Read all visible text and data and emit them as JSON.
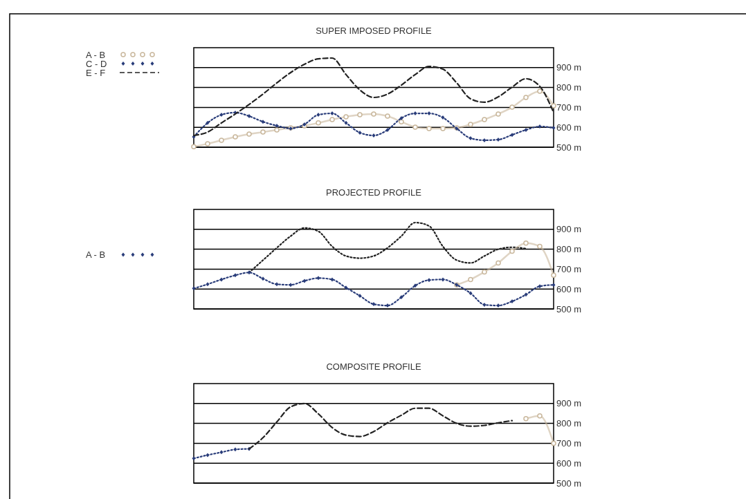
{
  "chart_data": [
    {
      "type": "line",
      "title": "SUPER IMPOSED PROFILE",
      "categories": [
        null,
        null,
        null,
        null,
        null,
        null,
        null,
        null,
        null,
        null,
        null,
        null,
        null,
        null,
        null,
        null,
        null,
        null,
        null,
        null,
        null,
        null,
        null,
        null,
        null,
        null,
        null
      ],
      "ylim": [
        500,
        1000
      ],
      "yticks": [
        {
          "value": 500,
          "label": "500 m"
        },
        {
          "value": 600,
          "label": "600 m"
        },
        {
          "value": 700,
          "label": "700 m"
        },
        {
          "value": 800,
          "label": "800 m"
        },
        {
          "value": 900,
          "label": "900 m"
        }
      ],
      "grid": "y",
      "legend": "top left",
      "tick_labels": "y",
      "series": [
        {
          "name": "A - B",
          "color": "#c9b79c",
          "marker": "circle",
          "line_style": "solid",
          "values": [
            503,
            517,
            535,
            552,
            566,
            576,
            587,
            597,
            608,
            622,
            639,
            653,
            663,
            667,
            656,
            628,
            601,
            594,
            594,
            597,
            615,
            639,
            667,
            701,
            750,
            781,
            708
          ]
        },
        {
          "name": "C - D",
          "color": "#2a3d7a",
          "marker": "diamond",
          "line_style": "dotted",
          "values": [
            552,
            622,
            663,
            674,
            656,
            628,
            608,
            594,
            615,
            663,
            670,
            622,
            573,
            559,
            587,
            646,
            670,
            670,
            649,
            594,
            545,
            535,
            538,
            562,
            587,
            604,
            597
          ]
        },
        {
          "name": "E - F",
          "color": "#222222",
          "marker": "none",
          "line_style": "dashed",
          "values": [
            559,
            576,
            622,
            667,
            715,
            767,
            823,
            875,
            917,
            944,
            948,
            865,
            788,
            750,
            767,
            812,
            865,
            906,
            892,
            823,
            743,
            726,
            753,
            802,
            844,
            806,
            674
          ]
        }
      ]
    },
    {
      "type": "line",
      "title": "PROJECTED PROFILE",
      "categories": [
        null,
        null,
        null,
        null,
        null,
        null,
        null,
        null,
        null,
        null,
        null,
        null,
        null,
        null,
        null,
        null,
        null,
        null,
        null,
        null,
        null,
        null,
        null,
        null,
        null,
        null,
        null
      ],
      "ylim": [
        500,
        1000
      ],
      "yticks": [
        {
          "value": 500,
          "label": "500 m"
        },
        {
          "value": 600,
          "label": "600 m"
        },
        {
          "value": 700,
          "label": "700 m"
        },
        {
          "value": 800,
          "label": "800 m"
        },
        {
          "value": 900,
          "label": "900 m"
        }
      ],
      "grid": "y",
      "legend": "left",
      "tick_labels": "y",
      "series": [
        {
          "color": "#222222",
          "marker": "none",
          "line_style": "dotted",
          "values": [
            null,
            null,
            null,
            null,
            683,
            745,
            807,
            866,
            907,
            890,
            814,
            766,
            755,
            766,
            807,
            866,
            934,
            917,
            814,
            745,
            731,
            766,
            800,
            810,
            803,
            null,
            null
          ]
        },
        {
          "color": "#c9b79c",
          "marker": "circle",
          "line_style": "solid",
          "values": [
            null,
            null,
            null,
            null,
            null,
            null,
            null,
            null,
            null,
            null,
            null,
            null,
            null,
            null,
            null,
            null,
            null,
            null,
            null,
            621,
            648,
            686,
            731,
            790,
            831,
            814,
            669
          ]
        },
        {
          "name": "A - B",
          "color": "#2a3d7a",
          "marker": "diamond",
          "line_style": "dotted",
          "values": [
            603,
            624,
            648,
            669,
            683,
            652,
            624,
            621,
            641,
            655,
            648,
            607,
            566,
            524,
            517,
            559,
            617,
            645,
            648,
            621,
            579,
            521,
            517,
            538,
            572,
            614,
            621
          ]
        }
      ]
    },
    {
      "type": "line",
      "title": "COMPOSITE PROFILE",
      "categories": [
        null,
        null,
        null,
        null,
        null,
        null,
        null,
        null,
        null,
        null,
        null,
        null,
        null,
        null,
        null,
        null,
        null,
        null,
        null,
        null,
        null,
        null,
        null,
        null,
        null,
        null,
        null
      ],
      "ylim": [
        500,
        1000
      ],
      "yticks": [
        {
          "value": 500,
          "label": "500 m"
        },
        {
          "value": 600,
          "label": "600 m"
        },
        {
          "value": 700,
          "label": "700 m"
        },
        {
          "value": 800,
          "label": "800 m"
        },
        {
          "value": 900,
          "label": "900 m"
        }
      ],
      "grid": "y",
      "tick_labels": "y",
      "series": [
        {
          "color": "#2a3d7a",
          "marker": "diamond",
          "line_style": "dotted",
          "values": [
            624,
            641,
            655,
            669,
            672,
            null,
            null,
            null,
            null,
            null,
            null,
            null,
            null,
            null,
            null,
            null,
            null,
            null,
            null,
            null,
            null,
            null,
            null,
            null,
            null,
            null,
            null
          ]
        },
        {
          "color": "#222222",
          "marker": "none",
          "line_style": "dashed",
          "values": [
            null,
            null,
            null,
            null,
            672,
            728,
            807,
            883,
            900,
            848,
            779,
            741,
            734,
            759,
            803,
            841,
            876,
            876,
            838,
            800,
            786,
            790,
            803,
            814,
            null,
            null,
            null
          ]
        },
        {
          "color": "#c9b79c",
          "marker": "circle",
          "line_style": "solid",
          "values": [
            null,
            null,
            null,
            null,
            null,
            null,
            null,
            null,
            null,
            null,
            null,
            null,
            null,
            null,
            null,
            null,
            null,
            null,
            null,
            null,
            null,
            null,
            null,
            null,
            824,
            838,
            700
          ]
        }
      ]
    }
  ]
}
